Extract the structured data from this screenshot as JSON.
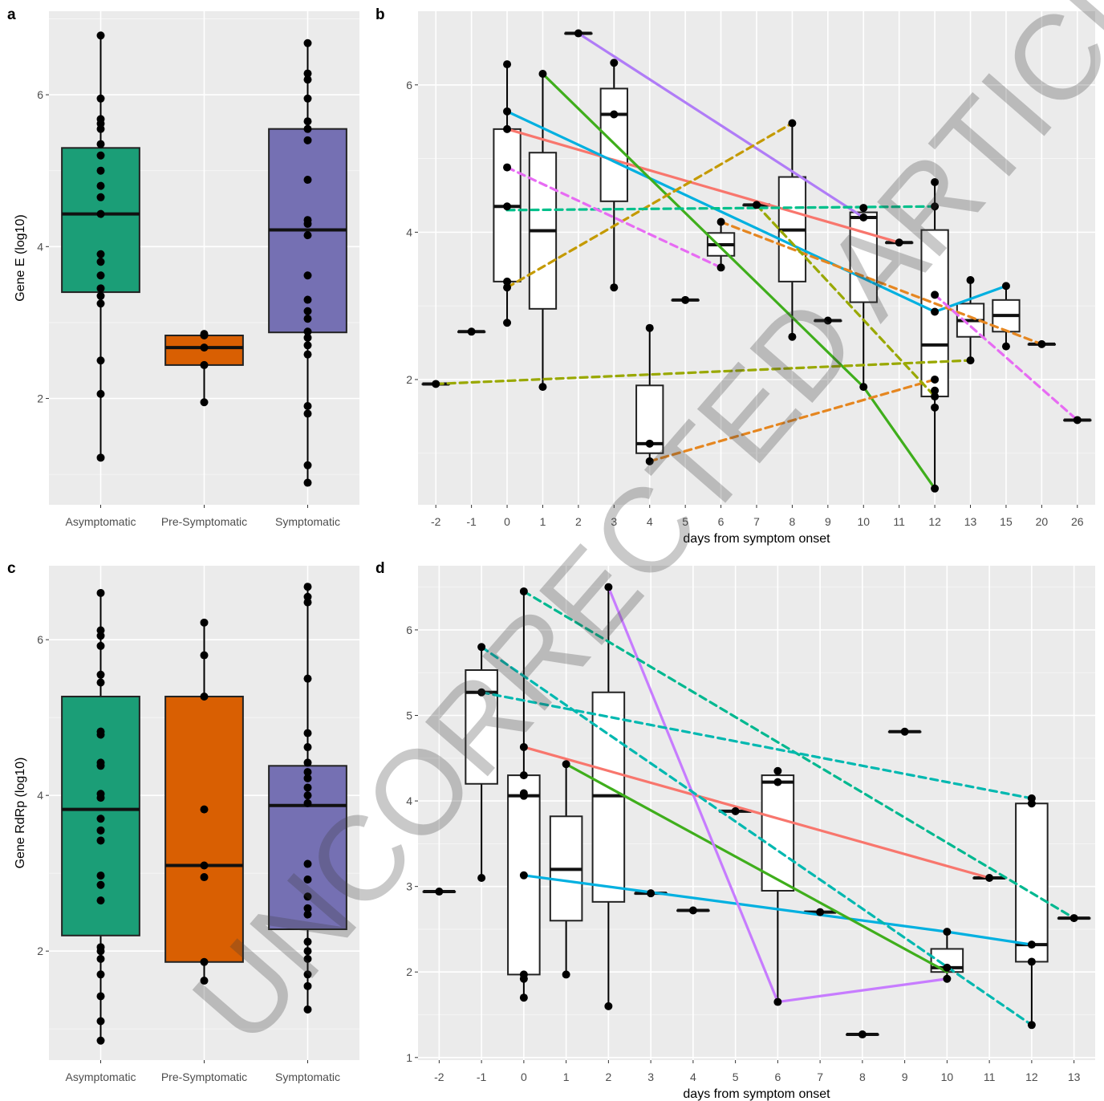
{
  "watermark": "UNCORRECTED ARTICLE PREVIEW",
  "chart_data": [
    {
      "panel": "a",
      "type": "box",
      "ylabel": "Gene E (log10)",
      "xlabel": "",
      "categories": [
        "Asymptomatic",
        "Pre-Symptomatic",
        "Symptomatic"
      ],
      "yticks": [
        2,
        4,
        6
      ],
      "ylim": [
        0.6,
        7.1
      ],
      "colors": [
        "#1b9e77",
        "#d95f02",
        "#7570b3"
      ],
      "boxes": [
        {
          "q1": 3.4,
          "median": 4.43,
          "q3": 5.3,
          "whisker_low": 1.22,
          "whisker_high": 6.78
        },
        {
          "q1": 2.44,
          "median": 2.67,
          "q3": 2.83,
          "whisker_low": 1.95,
          "whisker_high": 2.85
        },
        {
          "q1": 2.87,
          "median": 4.22,
          "q3": 5.55,
          "whisker_low": 0.89,
          "whisker_high": 6.68
        }
      ],
      "points": [
        [
          1.22,
          2.06,
          2.5,
          3.25,
          3.35,
          3.45,
          3.62,
          3.8,
          3.9,
          4.43,
          4.65,
          4.8,
          5.0,
          5.2,
          5.35,
          5.55,
          5.62,
          5.68,
          5.95,
          6.78
        ],
        [
          1.95,
          2.44,
          2.67,
          2.83,
          2.85
        ],
        [
          0.89,
          1.12,
          1.8,
          1.9,
          2.58,
          2.7,
          2.8,
          2.88,
          3.05,
          3.15,
          3.3,
          3.62,
          4.15,
          4.3,
          4.35,
          4.88,
          5.4,
          5.55,
          5.65,
          5.95,
          6.2,
          6.28,
          6.68
        ]
      ]
    },
    {
      "panel": "b",
      "type": "box",
      "xlabel": "days from symptom onset",
      "ylabel": "",
      "categories": [
        "-2",
        "-1",
        "0",
        "1",
        "2",
        "3",
        "4",
        "5",
        "6",
        "7",
        "8",
        "9",
        "10",
        "11",
        "12",
        "13",
        "15",
        "20",
        "26"
      ],
      "yticks": [
        2,
        4,
        6
      ],
      "ylim": [
        0.3,
        7.0
      ],
      "boxes": [
        {
          "cat": "-2",
          "q1": 1.94,
          "median": 1.94,
          "q3": 1.94,
          "whisker_low": 1.94,
          "whisker_high": 1.94
        },
        {
          "cat": "-1",
          "q1": 2.65,
          "median": 2.65,
          "q3": 2.65,
          "whisker_low": 2.65,
          "whisker_high": 2.65
        },
        {
          "cat": "0",
          "q1": 3.33,
          "median": 4.35,
          "q3": 5.4,
          "whisker_low": 2.77,
          "whisker_high": 6.28
        },
        {
          "cat": "1",
          "q1": 2.96,
          "median": 4.02,
          "q3": 5.08,
          "whisker_low": 1.9,
          "whisker_high": 6.15
        },
        {
          "cat": "2",
          "q1": 6.7,
          "median": 6.7,
          "q3": 6.7,
          "whisker_low": 6.7,
          "whisker_high": 6.7
        },
        {
          "cat": "3",
          "q1": 4.42,
          "median": 5.6,
          "q3": 5.95,
          "whisker_low": 3.25,
          "whisker_high": 6.3
        },
        {
          "cat": "4",
          "q1": 1.0,
          "median": 1.13,
          "q3": 1.92,
          "whisker_low": 0.89,
          "whisker_high": 2.7
        },
        {
          "cat": "5",
          "q1": 3.08,
          "median": 3.08,
          "q3": 3.08,
          "whisker_low": 3.08,
          "whisker_high": 3.08
        },
        {
          "cat": "6",
          "q1": 3.68,
          "median": 3.83,
          "q3": 3.99,
          "whisker_low": 3.52,
          "whisker_high": 4.14
        },
        {
          "cat": "7",
          "q1": 4.37,
          "median": 4.37,
          "q3": 4.37,
          "whisker_low": 4.37,
          "whisker_high": 4.37
        },
        {
          "cat": "8",
          "q1": 3.33,
          "median": 4.03,
          "q3": 4.75,
          "whisker_low": 2.58,
          "whisker_high": 5.48
        },
        {
          "cat": "9",
          "q1": 2.8,
          "median": 2.8,
          "q3": 2.8,
          "whisker_low": 2.8,
          "whisker_high": 2.8
        },
        {
          "cat": "10",
          "q1": 3.05,
          "median": 4.2,
          "q3": 4.27,
          "whisker_low": 1.9,
          "whisker_high": 4.33
        },
        {
          "cat": "11",
          "q1": 3.86,
          "median": 3.86,
          "q3": 3.86,
          "whisker_low": 3.86,
          "whisker_high": 3.86
        },
        {
          "cat": "12",
          "q1": 1.77,
          "median": 2.47,
          "q3": 4.03,
          "whisker_low": 0.52,
          "whisker_high": 4.68
        },
        {
          "cat": "13",
          "q1": 2.58,
          "median": 2.8,
          "q3": 3.03,
          "whisker_low": 2.26,
          "whisker_high": 3.35
        },
        {
          "cat": "15",
          "q1": 2.65,
          "median": 2.87,
          "q3": 3.08,
          "whisker_low": 2.45,
          "whisker_high": 3.27
        },
        {
          "cat": "20",
          "q1": 2.48,
          "median": 2.48,
          "q3": 2.48,
          "whisker_low": 2.48,
          "whisker_high": 2.48
        },
        {
          "cat": "26",
          "q1": 1.45,
          "median": 1.45,
          "q3": 1.45,
          "whisker_low": 1.45,
          "whisker_high": 1.45
        }
      ],
      "points": [
        [
          "-2",
          1.94
        ],
        [
          "-1",
          2.65
        ],
        [
          "0",
          2.77
        ],
        [
          "0",
          3.25
        ],
        [
          "0",
          3.33
        ],
        [
          "0",
          4.35
        ],
        [
          "0",
          4.88
        ],
        [
          "0",
          5.4
        ],
        [
          "0",
          5.64
        ],
        [
          "0",
          6.28
        ],
        [
          "1",
          1.9
        ],
        [
          "1",
          6.15
        ],
        [
          "2",
          6.7
        ],
        [
          "3",
          3.25
        ],
        [
          "3",
          5.6
        ],
        [
          "3",
          6.3
        ],
        [
          "4",
          0.89
        ],
        [
          "4",
          1.13
        ],
        [
          "4",
          2.7
        ],
        [
          "5",
          3.08
        ],
        [
          "6",
          3.52
        ],
        [
          "6",
          4.14
        ],
        [
          "7",
          4.37
        ],
        [
          "8",
          2.58
        ],
        [
          "8",
          5.48
        ],
        [
          "9",
          2.8
        ],
        [
          "10",
          1.9
        ],
        [
          "10",
          4.2
        ],
        [
          "10",
          4.33
        ],
        [
          "11",
          3.86
        ],
        [
          "12",
          0.52
        ],
        [
          "12",
          1.62
        ],
        [
          "12",
          1.77
        ],
        [
          "12",
          1.85
        ],
        [
          "12",
          2.0
        ],
        [
          "12",
          2.92
        ],
        [
          "12",
          3.15
        ],
        [
          "12",
          4.35
        ],
        [
          "12",
          4.68
        ],
        [
          "13",
          2.26
        ],
        [
          "13",
          3.35
        ],
        [
          "15",
          2.45
        ],
        [
          "15",
          3.27
        ],
        [
          "20",
          2.48
        ],
        [
          "26",
          1.45
        ]
      ],
      "series": [
        {
          "color": "#f8766d",
          "dash": false,
          "points": [
            [
              "0",
              5.4
            ],
            [
              "11",
              3.86
            ]
          ]
        },
        {
          "color": "#00b0e0",
          "dash": false,
          "points": [
            [
              "0",
              5.64
            ],
            [
              "12",
              2.92
            ],
            [
              "15",
              3.27
            ]
          ]
        },
        {
          "color": "#3fae1c",
          "dash": false,
          "points": [
            [
              "1",
              6.15
            ],
            [
              "10",
              1.9
            ],
            [
              "12",
              0.52
            ]
          ]
        },
        {
          "color": "#b07cf7",
          "dash": false,
          "points": [
            [
              "2",
              6.7
            ],
            [
              "10",
              4.2
            ]
          ]
        },
        {
          "color": "#e58620",
          "dash": true,
          "points": [
            [
              "4",
              0.89
            ],
            [
              "12",
              2.0
            ]
          ]
        },
        {
          "color": "#e58620",
          "dash": true,
          "points": [
            [
              "6",
              4.14
            ],
            [
              "20",
              2.48
            ]
          ]
        },
        {
          "color": "#c49a00",
          "dash": true,
          "points": [
            [
              "0",
              3.25
            ],
            [
              "8",
              5.48
            ]
          ]
        },
        {
          "color": "#99a800",
          "dash": true,
          "points": [
            [
              "-2",
              1.94
            ],
            [
              "13",
              2.26
            ]
          ]
        },
        {
          "color": "#99a800",
          "dash": true,
          "points": [
            [
              "7",
              4.37
            ],
            [
              "12",
              1.77
            ]
          ]
        },
        {
          "color": "#00c08b",
          "dash": true,
          "points": [
            [
              "0",
              4.3
            ],
            [
              "12",
              4.35
            ]
          ]
        },
        {
          "color": "#e76bf3",
          "dash": true,
          "points": [
            [
              "0",
              4.88
            ],
            [
              "6",
              3.52
            ]
          ]
        },
        {
          "color": "#e76bf3",
          "dash": true,
          "points": [
            [
              "12",
              3.15
            ],
            [
              "26",
              1.45
            ]
          ]
        }
      ]
    },
    {
      "panel": "c",
      "type": "box",
      "ylabel": "Gene RdRp (log10)",
      "xlabel": "",
      "categories": [
        "Asymptomatic",
        "Pre-Symptomatic",
        "Symptomatic"
      ],
      "yticks": [
        2,
        4,
        6
      ],
      "ylim": [
        0.6,
        6.95
      ],
      "colors": [
        "#1b9e77",
        "#d95f02",
        "#7570b3"
      ],
      "boxes": [
        {
          "q1": 2.2,
          "median": 3.82,
          "q3": 5.27,
          "whisker_low": 0.85,
          "whisker_high": 6.6
        },
        {
          "q1": 1.86,
          "median": 3.1,
          "q3": 5.27,
          "whisker_low": 1.62,
          "whisker_high": 6.22
        },
        {
          "q1": 2.28,
          "median": 3.87,
          "q3": 4.38,
          "whisker_low": 1.25,
          "whisker_high": 6.68
        }
      ],
      "points": [
        [
          0.85,
          1.1,
          1.42,
          1.7,
          1.9,
          2.0,
          2.05,
          2.65,
          2.85,
          2.97,
          3.42,
          3.55,
          3.7,
          3.97,
          4.02,
          4.38,
          4.42,
          4.78,
          4.82,
          5.45,
          5.55,
          5.92,
          6.05,
          6.12,
          6.6
        ],
        [
          1.62,
          1.86,
          2.95,
          3.1,
          3.82,
          5.27,
          5.8,
          6.22
        ],
        [
          1.25,
          1.55,
          1.7,
          1.9,
          2.0,
          2.12,
          2.47,
          2.55,
          2.7,
          2.92,
          3.12,
          3.9,
          4.0,
          4.1,
          4.22,
          4.3,
          4.42,
          4.62,
          4.8,
          5.5,
          6.48,
          6.55,
          6.68
        ]
      ]
    },
    {
      "panel": "d",
      "type": "box",
      "xlabel": "days from symptom onset",
      "ylabel": "",
      "categories": [
        "-2",
        "-1",
        "0",
        "1",
        "2",
        "3",
        "4",
        "5",
        "6",
        "7",
        "8",
        "9",
        "10",
        "11",
        "12",
        "13"
      ],
      "yticks": [
        1,
        2,
        3,
        4,
        5,
        6
      ],
      "ylim": [
        0.97,
        6.75
      ],
      "boxes": [
        {
          "cat": "-2",
          "q1": 2.94,
          "median": 2.94,
          "q3": 2.94,
          "whisker_low": 2.94,
          "whisker_high": 2.94
        },
        {
          "cat": "-1",
          "q1": 4.2,
          "median": 5.27,
          "q3": 5.53,
          "whisker_low": 3.1,
          "whisker_high": 5.8
        },
        {
          "cat": "0",
          "q1": 1.97,
          "median": 4.06,
          "q3": 4.3,
          "whisker_low": 1.7,
          "whisker_high": 6.45
        },
        {
          "cat": "1",
          "q1": 2.6,
          "median": 3.2,
          "q3": 3.82,
          "whisker_low": 1.97,
          "whisker_high": 4.43
        },
        {
          "cat": "2",
          "q1": 2.82,
          "median": 4.06,
          "q3": 5.27,
          "whisker_low": 1.6,
          "whisker_high": 6.5
        },
        {
          "cat": "3",
          "q1": 2.92,
          "median": 2.92,
          "q3": 2.92,
          "whisker_low": 2.92,
          "whisker_high": 2.92
        },
        {
          "cat": "4",
          "q1": 2.72,
          "median": 2.72,
          "q3": 2.72,
          "whisker_low": 2.72,
          "whisker_high": 2.72
        },
        {
          "cat": "5",
          "q1": 3.88,
          "median": 3.88,
          "q3": 3.88,
          "whisker_low": 3.88,
          "whisker_high": 3.88
        },
        {
          "cat": "6",
          "q1": 2.95,
          "median": 4.22,
          "q3": 4.3,
          "whisker_low": 1.65,
          "whisker_high": 4.35
        },
        {
          "cat": "7",
          "q1": 2.7,
          "median": 2.7,
          "q3": 2.7,
          "whisker_low": 2.7,
          "whisker_high": 2.7
        },
        {
          "cat": "8",
          "q1": 1.27,
          "median": 1.27,
          "q3": 1.27,
          "whisker_low": 1.27,
          "whisker_high": 1.27
        },
        {
          "cat": "9",
          "q1": 4.81,
          "median": 4.81,
          "q3": 4.81,
          "whisker_low": 4.81,
          "whisker_high": 4.81
        },
        {
          "cat": "10",
          "q1": 2.0,
          "median": 2.05,
          "q3": 2.27,
          "whisker_low": 1.92,
          "whisker_high": 2.47
        },
        {
          "cat": "11",
          "q1": 3.1,
          "median": 3.1,
          "q3": 3.1,
          "whisker_low": 3.1,
          "whisker_high": 3.1
        },
        {
          "cat": "12",
          "q1": 2.12,
          "median": 2.32,
          "q3": 3.97,
          "whisker_low": 1.38,
          "whisker_high": 4.03
        },
        {
          "cat": "13",
          "q1": 2.63,
          "median": 2.63,
          "q3": 2.63,
          "whisker_low": 2.63,
          "whisker_high": 2.63
        }
      ],
      "points": [
        [
          "-2",
          2.94
        ],
        [
          "-1",
          3.1
        ],
        [
          "-1",
          5.27
        ],
        [
          "-1",
          5.8
        ],
        [
          "0",
          1.7
        ],
        [
          "0",
          1.92
        ],
        [
          "0",
          1.97
        ],
        [
          "0",
          3.13
        ],
        [
          "0",
          4.06
        ],
        [
          "0",
          4.09
        ],
        [
          "0",
          4.3
        ],
        [
          "0",
          4.63
        ],
        [
          "0",
          6.45
        ],
        [
          "1",
          1.97
        ],
        [
          "1",
          4.43
        ],
        [
          "2",
          1.6
        ],
        [
          "2",
          6.5
        ],
        [
          "3",
          2.92
        ],
        [
          "4",
          2.72
        ],
        [
          "5",
          3.88
        ],
        [
          "6",
          1.65
        ],
        [
          "6",
          4.22
        ],
        [
          "6",
          4.35
        ],
        [
          "7",
          2.7
        ],
        [
          "8",
          1.27
        ],
        [
          "9",
          4.81
        ],
        [
          "10",
          1.92
        ],
        [
          "10",
          2.05
        ],
        [
          "10",
          2.47
        ],
        [
          "11",
          3.1
        ],
        [
          "12",
          1.38
        ],
        [
          "12",
          2.12
        ],
        [
          "12",
          2.32
        ],
        [
          "12",
          3.97
        ],
        [
          "12",
          4.03
        ],
        [
          "13",
          2.63
        ]
      ],
      "series": [
        {
          "color": "#f8766d",
          "dash": false,
          "points": [
            [
              "0",
              4.63
            ],
            [
              "11",
              3.1
            ]
          ]
        },
        {
          "color": "#00b0e0",
          "dash": false,
          "points": [
            [
              "0",
              3.13
            ],
            [
              "10",
              2.47
            ],
            [
              "12",
              2.32
            ]
          ]
        },
        {
          "color": "#3fae1c",
          "dash": false,
          "points": [
            [
              "1",
              4.43
            ],
            [
              "10",
              2.0
            ]
          ]
        },
        {
          "color": "#c77cff",
          "dash": false,
          "points": [
            [
              "2",
              6.5
            ],
            [
              "6",
              1.65
            ],
            [
              "10",
              1.92
            ]
          ]
        },
        {
          "color": "#00b890",
          "dash": true,
          "points": [
            [
              "0",
              6.45
            ],
            [
              "13",
              2.63
            ]
          ]
        },
        {
          "color": "#00b8b0",
          "dash": true,
          "points": [
            [
              "-1",
              5.8
            ],
            [
              "12",
              1.38
            ]
          ]
        },
        {
          "color": "#00b8b0",
          "dash": true,
          "points": [
            [
              "-1",
              5.27
            ],
            [
              "12",
              4.03
            ]
          ]
        }
      ]
    }
  ]
}
